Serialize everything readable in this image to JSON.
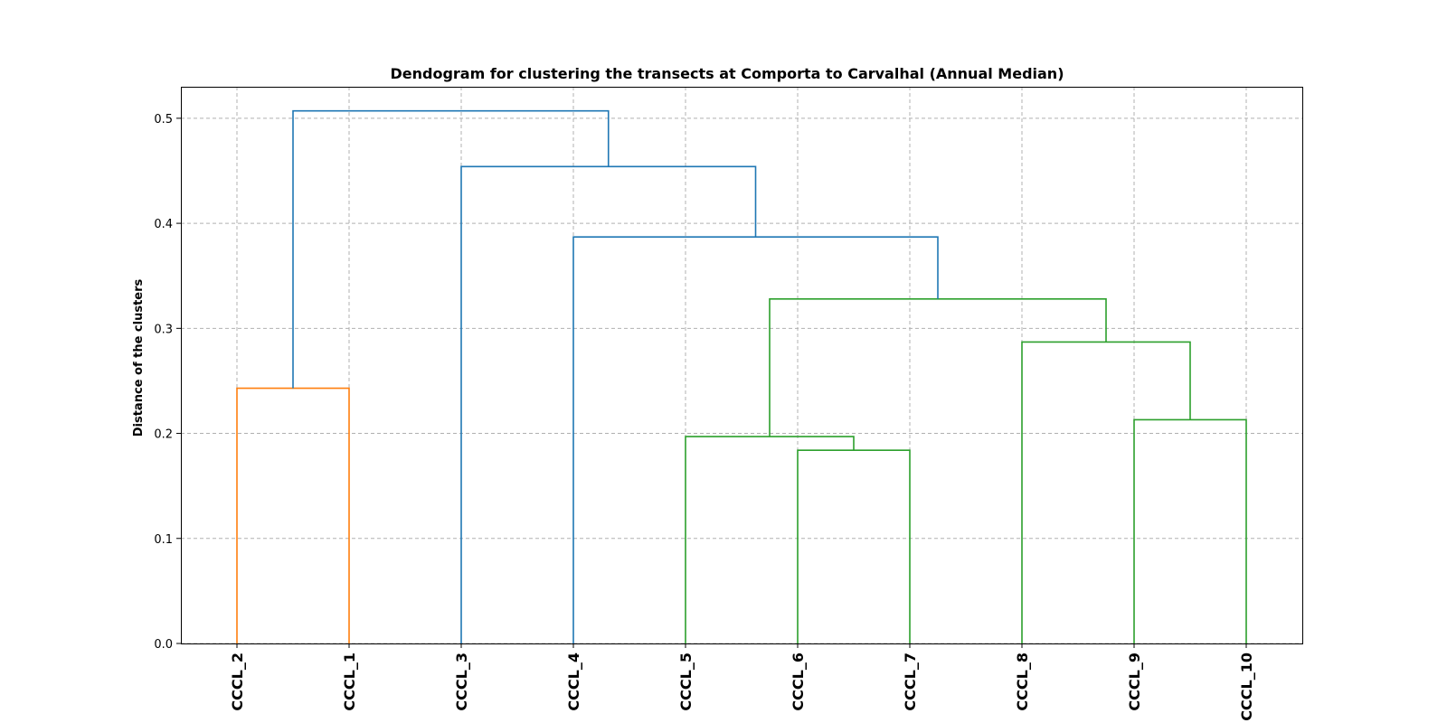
{
  "chart_data": {
    "type": "dendrogram",
    "title": "Dendogram for clustering the transects at Comporta to Carvalhal (Annual Median)",
    "xlabel": "",
    "ylabel": "Distance of the clusters",
    "ylim": [
      0,
      0.53
    ],
    "yticks": [
      "0.0",
      "0.1",
      "0.2",
      "0.3",
      "0.4",
      "0.5"
    ],
    "grid": true,
    "leaves": [
      "CCCL_2",
      "CCCL_1",
      "CCCL_3",
      "CCCL_4",
      "CCCL_5",
      "CCCL_6",
      "CCCL_7",
      "CCCL_8",
      "CCCL_9",
      "CCCL_10"
    ],
    "colors": {
      "orange": "#ff7f0e",
      "blue": "#1f77b4",
      "green": "#2ca02c"
    },
    "merges": [
      {
        "left": "CCCL_2",
        "right": "CCCL_1",
        "height": 0.243,
        "color": "orange"
      },
      {
        "left": "CCCL_6",
        "right": "CCCL_7",
        "height": 0.184,
        "color": "green"
      },
      {
        "left": "CCCL_5",
        "right": "CCCL_6+CCCL_7",
        "height": 0.197,
        "color": "green"
      },
      {
        "left": "CCCL_9",
        "right": "CCCL_10",
        "height": 0.213,
        "color": "green"
      },
      {
        "left": "CCCL_8",
        "right": "CCCL_9+CCCL_10",
        "height": 0.287,
        "color": "green"
      },
      {
        "left": "CCCL_5+CCCL_6+CCCL_7",
        "right": "CCCL_8+CCCL_9+CCCL_10",
        "height": 0.328,
        "color": "green"
      },
      {
        "left": "CCCL_4",
        "right": "CCCL_5..CCCL_10",
        "height": 0.387,
        "color": "blue"
      },
      {
        "left": "CCCL_3",
        "right": "CCCL_4..CCCL_10",
        "height": 0.454,
        "color": "blue"
      },
      {
        "left": "CCCL_2+CCCL_1",
        "right": "CCCL_3..CCCL_10",
        "height": 0.507,
        "color": "blue"
      }
    ]
  }
}
